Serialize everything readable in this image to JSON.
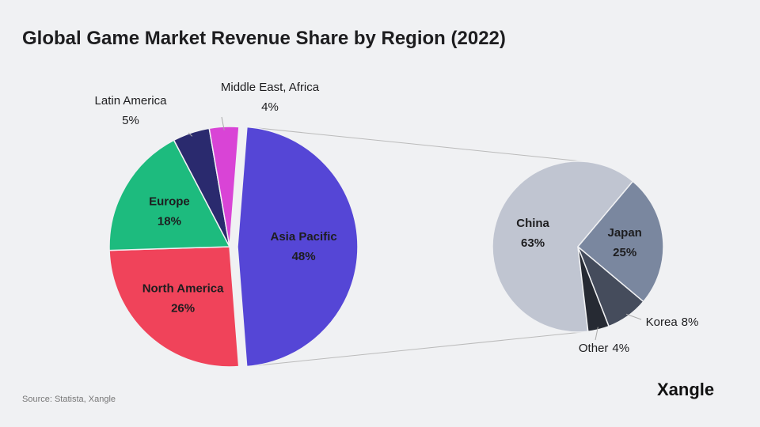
{
  "chart_data": {
    "type": "pie",
    "title": "Global Game Market Revenue Share by Region (2022)",
    "source": "Source: Statista, Xangle",
    "logo": "Xangle",
    "categories": [
      "Asia Pacific",
      "North America",
      "Europe",
      "Latin America",
      "Middle East, Africa"
    ],
    "values": [
      48,
      26,
      18,
      5,
      4
    ],
    "value_labels": [
      "48%",
      "26%",
      "18%",
      "5%",
      "4%"
    ],
    "colors": [
      "#5546d6",
      "#f0435a",
      "#1dbb7e",
      "#2a2a6e",
      "#d944d6"
    ],
    "breakdown": {
      "parent": "Asia Pacific",
      "categories": [
        "China",
        "Japan",
        "Korea",
        "Other"
      ],
      "values": [
        63,
        25,
        8,
        4
      ],
      "value_labels": [
        "63%",
        "25%",
        "8%",
        "4%"
      ],
      "colors": [
        "#c0c5d1",
        "#7a879f",
        "#454c5c",
        "#262a33"
      ]
    }
  }
}
